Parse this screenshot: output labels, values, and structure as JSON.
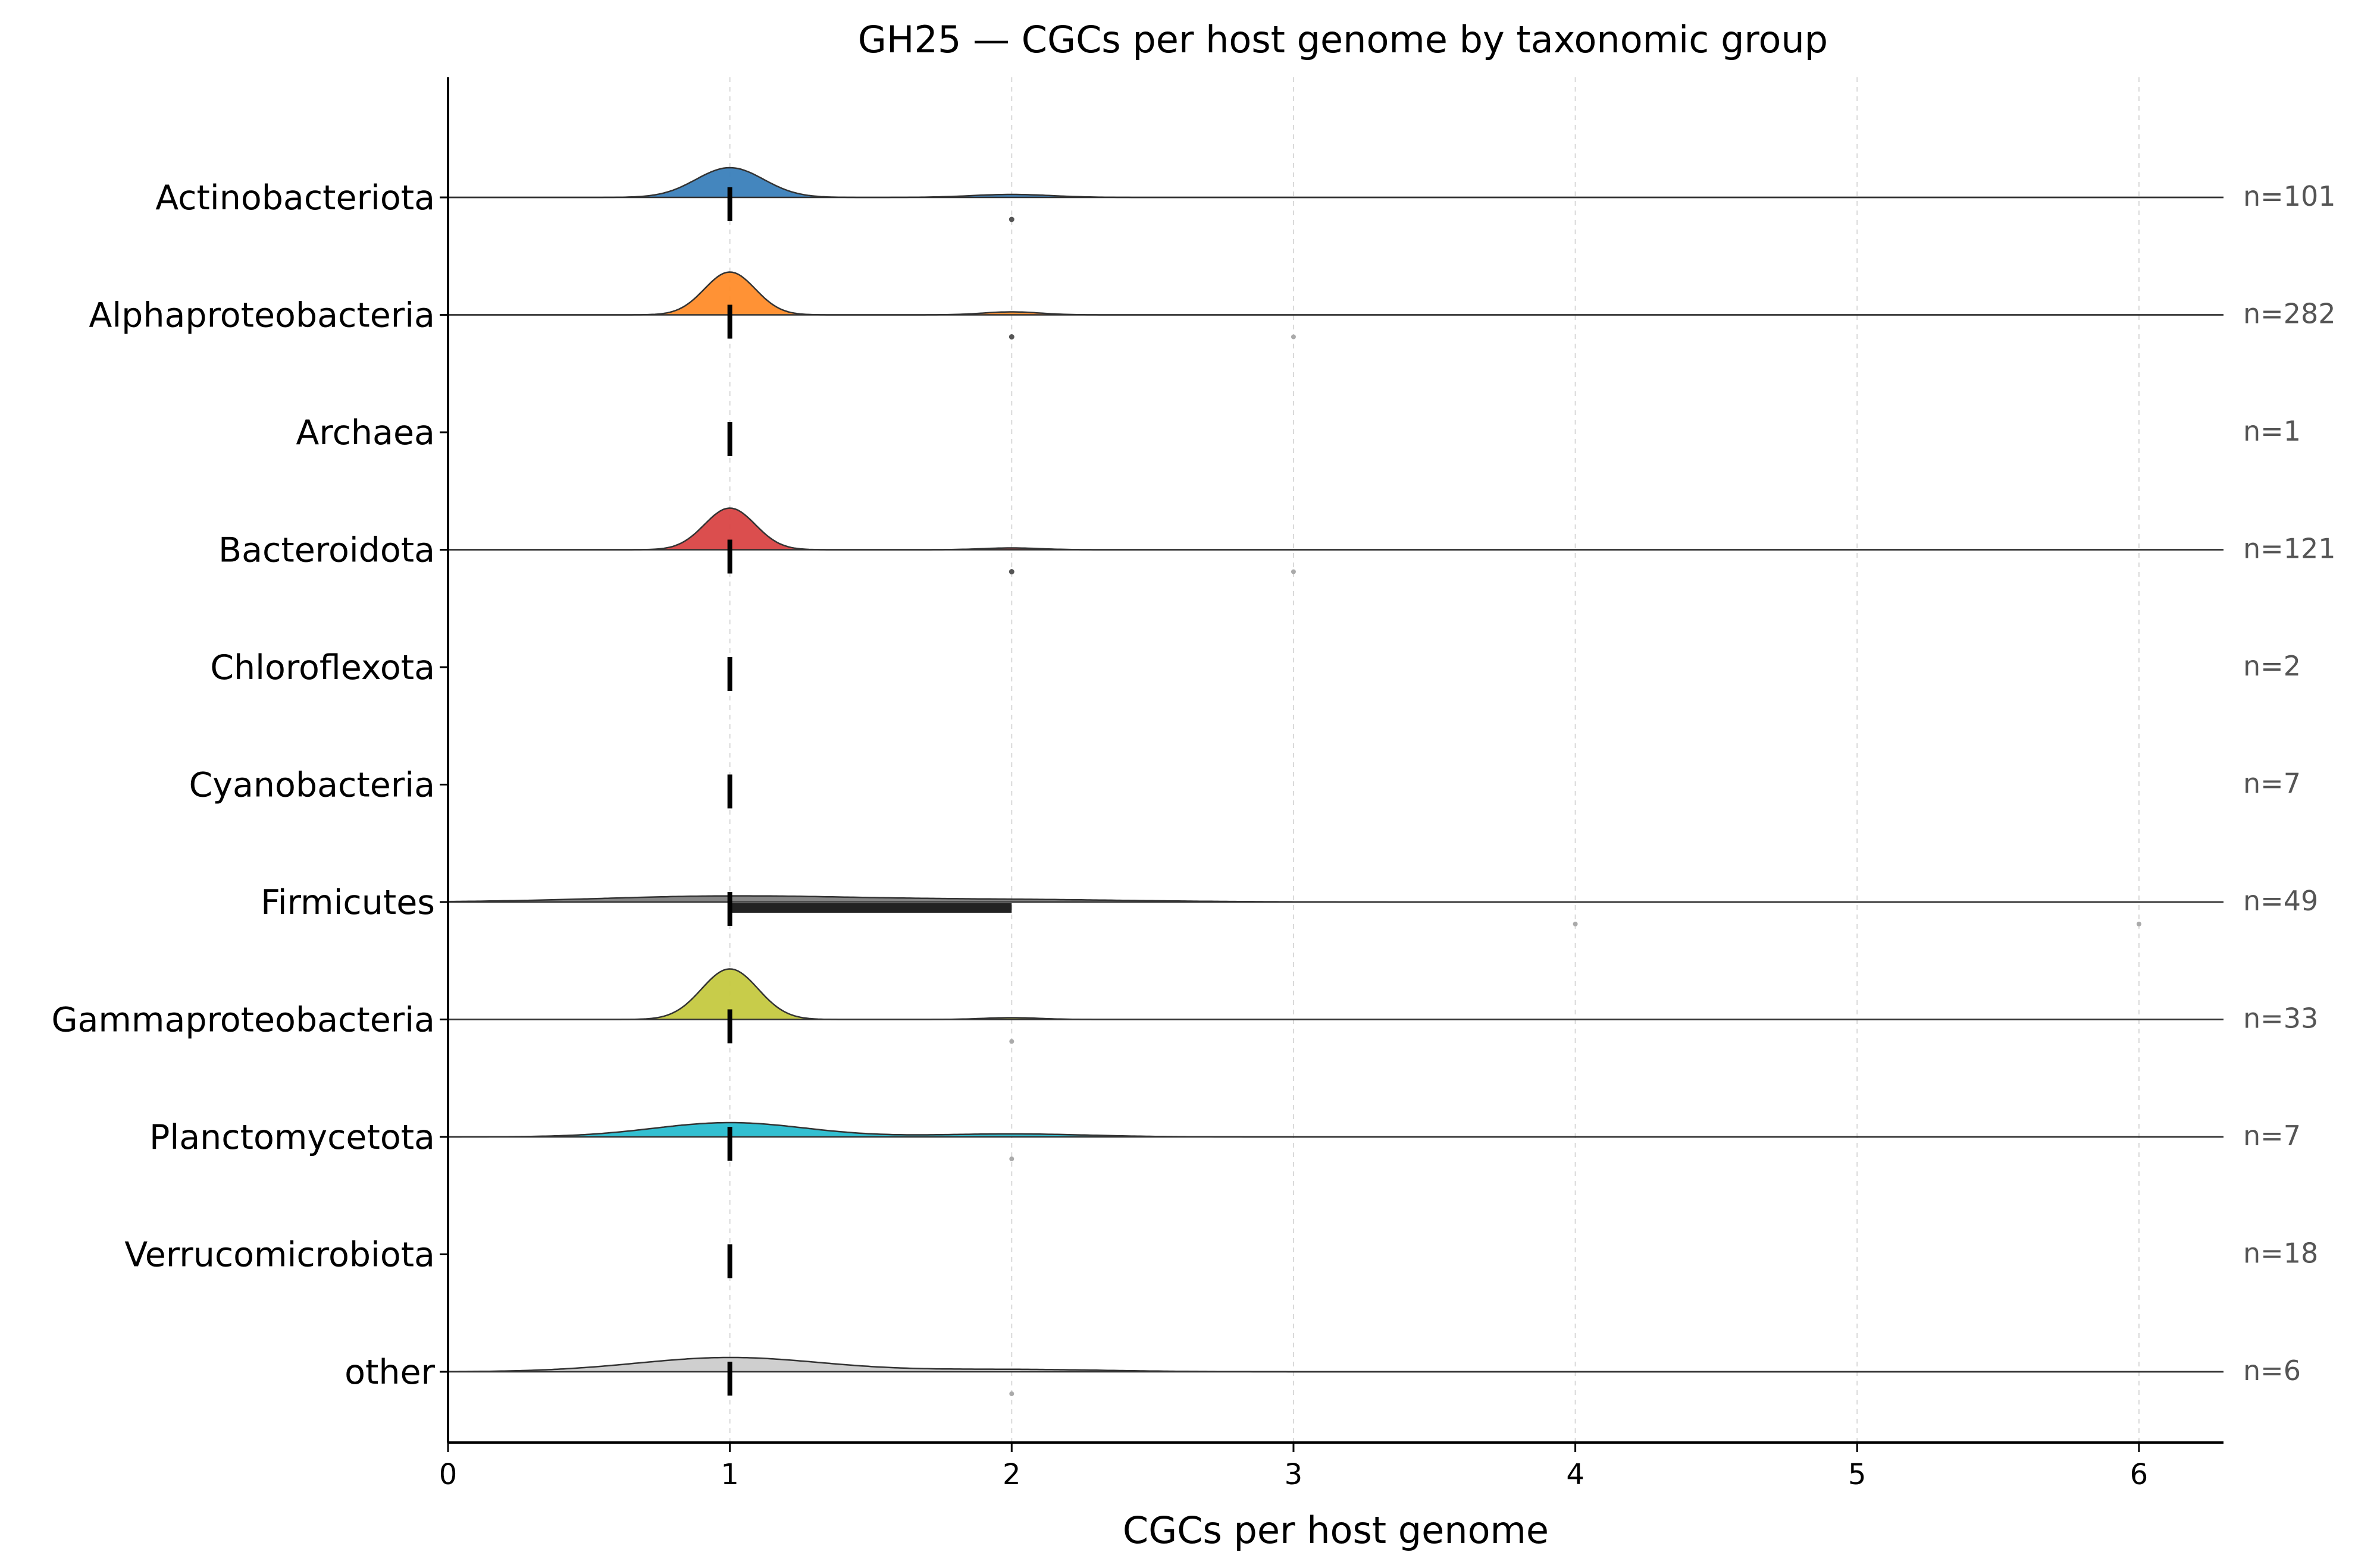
{
  "chart_data": {
    "type": "ridgeline",
    "title": "GH25 — CGCs per host genome by taxonomic group",
    "xlabel": "CGCs per host genome",
    "ylabel": "",
    "xlim": [
      0,
      6.3
    ],
    "xticks": [
      0,
      1,
      2,
      3,
      4,
      5,
      6
    ],
    "grid": "vertical dashed",
    "series": [
      {
        "name": "Actinobacteriota",
        "n_label": "n=101",
        "n": 101,
        "color": "#3a7fba",
        "peaks": [
          {
            "x": 1,
            "h": 0.5,
            "sd": 0.12
          },
          {
            "x": 2,
            "h": 0.05,
            "sd": 0.14
          }
        ],
        "median": 1,
        "iqr": [
          1,
          1
        ],
        "outliers": [
          2
        ],
        "outliers_light": []
      },
      {
        "name": "Alphaproteobacteria",
        "n_label": "n=282",
        "n": 282,
        "color": "#ff8c2a",
        "peaks": [
          {
            "x": 1,
            "h": 0.72,
            "sd": 0.09
          },
          {
            "x": 2,
            "h": 0.05,
            "sd": 0.1
          }
        ],
        "median": 1,
        "iqr": [
          1,
          1
        ],
        "outliers": [
          2
        ],
        "outliers_light": [
          3
        ]
      },
      {
        "name": "Archaea",
        "n_label": "n=1",
        "n": 1,
        "color": "#2ca02c",
        "peaks": [],
        "median": 1,
        "iqr": [
          1,
          1
        ],
        "outliers": [],
        "outliers_light": []
      },
      {
        "name": "Bacteroidota",
        "n_label": "n=121",
        "n": 121,
        "color": "#d94545",
        "peaks": [
          {
            "x": 1,
            "h": 0.7,
            "sd": 0.09
          },
          {
            "x": 2,
            "h": 0.03,
            "sd": 0.1
          }
        ],
        "median": 1,
        "iqr": [
          1,
          1
        ],
        "outliers": [
          2
        ],
        "outliers_light": [
          3
        ]
      },
      {
        "name": "Chloroflexota",
        "n_label": "n=2",
        "n": 2,
        "color": "#9467bd",
        "peaks": [],
        "median": 1,
        "iqr": [
          1,
          1
        ],
        "outliers": [],
        "outliers_light": []
      },
      {
        "name": "Cyanobacteria",
        "n_label": "n=7",
        "n": 7,
        "color": "#8c564b",
        "peaks": [],
        "median": 1,
        "iqr": [
          1,
          1
        ],
        "outliers": [],
        "outliers_light": []
      },
      {
        "name": "Firmicutes",
        "n_label": "n=49",
        "n": 49,
        "color": "#7f7f7f",
        "peaks": [
          {
            "x": 1,
            "h": 0.1,
            "sd": 0.45
          },
          {
            "x": 2,
            "h": 0.04,
            "sd": 0.45
          }
        ],
        "median": 1,
        "iqr": [
          1,
          2
        ],
        "outliers": [],
        "outliers_light": [
          4,
          6
        ]
      },
      {
        "name": "Gammaproteobacteria",
        "n_label": "n=33",
        "n": 33,
        "color": "#c5c940",
        "peaks": [
          {
            "x": 1,
            "h": 0.85,
            "sd": 0.1
          },
          {
            "x": 2,
            "h": 0.03,
            "sd": 0.1
          }
        ],
        "median": 1,
        "iqr": [
          1,
          1
        ],
        "outliers": [],
        "outliers_light": [
          2
        ]
      },
      {
        "name": "Planctomycetota",
        "n_label": "n=7",
        "n": 7,
        "color": "#27bccf",
        "peaks": [
          {
            "x": 1,
            "h": 0.24,
            "sd": 0.27
          },
          {
            "x": 2,
            "h": 0.05,
            "sd": 0.27
          }
        ],
        "median": 1,
        "iqr": [
          1,
          1
        ],
        "outliers": [],
        "outliers_light": [
          2
        ]
      },
      {
        "name": "Verrucomicrobiota",
        "n_label": "n=18",
        "n": 18,
        "color": "#17becf",
        "peaks": [],
        "median": 1,
        "iqr": [
          1,
          1
        ],
        "outliers": [],
        "outliers_light": []
      },
      {
        "name": "other",
        "n_label": "n=6",
        "n": 6,
        "color": "#cccccc",
        "peaks": [
          {
            "x": 1,
            "h": 0.24,
            "sd": 0.33
          },
          {
            "x": 2,
            "h": 0.04,
            "sd": 0.33
          }
        ],
        "median": 1,
        "iqr": [
          1,
          1
        ],
        "outliers": [],
        "outliers_light": [
          2
        ]
      }
    ]
  }
}
